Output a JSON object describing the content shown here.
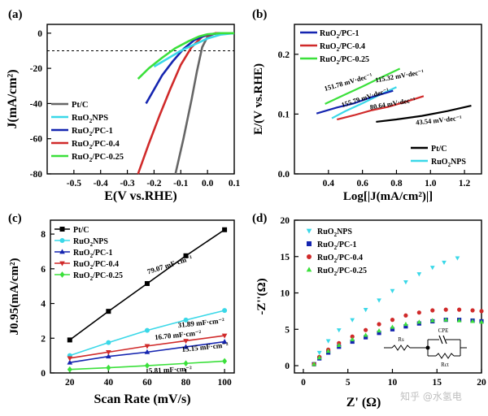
{
  "watermark": "知乎 @水氢电",
  "chart_data": [
    {
      "id": "a",
      "type": "line",
      "panel_label": "(a)",
      "xlabel": "E(V vs.RHE)",
      "ylabel": "J(mA/cm²)",
      "xlim": [
        -0.6,
        0.1
      ],
      "ylim": [
        -80,
        5
      ],
      "xticks": [
        -0.5,
        -0.4,
        -0.3,
        -0.2,
        -0.1,
        0.0,
        0.1
      ],
      "xtick_labels": [
        "-0.5",
        "-0.4",
        "-0.3",
        "-0.2",
        "-0.1",
        "0.0",
        "0.1"
      ],
      "yticks": [
        0,
        -20,
        -40,
        -60,
        -80
      ],
      "ytick_labels": [
        "0",
        "-20",
        "-40",
        "-60",
        "-80"
      ],
      "reference_line": -10,
      "legend": [
        "Pt/C",
        "RuO₂NPS",
        "RuO₂/PC-1",
        "RuO₂/PC-0.4",
        "RuO₂/PC-0.25"
      ],
      "series": [
        {
          "name": "Pt/C",
          "color": "#666666",
          "x": [
            -0.12,
            -0.09,
            -0.06,
            -0.04,
            -0.02,
            0.0,
            0.03,
            0.1
          ],
          "y": [
            -80,
            -60,
            -38,
            -22,
            -8,
            -2,
            0,
            0
          ]
        },
        {
          "name": "RuO₂NPS",
          "color": "#3ad8e8",
          "x": [
            -0.2,
            -0.15,
            -0.1,
            -0.05,
            0.0,
            0.05,
            0.1
          ],
          "y": [
            -19,
            -14.5,
            -10,
            -6.5,
            -3,
            -0.8,
            0
          ]
        },
        {
          "name": "RuO₂/PC-1",
          "color": "#1525b0",
          "x": [
            -0.23,
            -0.2,
            -0.17,
            -0.13,
            -0.09,
            -0.05,
            0.0,
            0.05,
            0.1
          ],
          "y": [
            -40,
            -32,
            -24,
            -16,
            -9,
            -4,
            -0.8,
            0,
            0
          ]
        },
        {
          "name": "RuO₂/PC-0.4",
          "color": "#d02a2a",
          "x": [
            -0.26,
            -0.22,
            -0.18,
            -0.14,
            -0.1,
            -0.06,
            -0.02,
            0.03,
            0.1
          ],
          "y": [
            -80,
            -63,
            -47,
            -32,
            -18,
            -8,
            -2,
            0,
            0
          ]
        },
        {
          "name": "RuO₂/PC-0.25",
          "color": "#3be03b",
          "x": [
            -0.26,
            -0.22,
            -0.17,
            -0.12,
            -0.07,
            -0.03,
            0.0,
            0.05,
            0.1
          ],
          "y": [
            -26,
            -20,
            -14,
            -8.5,
            -4.5,
            -1.8,
            -0.6,
            0,
            0
          ]
        }
      ]
    },
    {
      "id": "b",
      "type": "line",
      "panel_label": "(b)",
      "xlabel": "Log[|J(mA/cm²)|]",
      "ylabel": "E/(V vs.RHE)",
      "xlim": [
        0.2,
        1.3
      ],
      "ylim": [
        0.0,
        0.25
      ],
      "xticks": [
        0.4,
        0.6,
        0.8,
        1.0,
        1.2
      ],
      "xtick_labels": [
        "0.4",
        "0.6",
        "0.8",
        "1.0",
        "1.2"
      ],
      "yticks": [
        0.0,
        0.1,
        0.2
      ],
      "ytick_labels": [
        "0.0",
        "0.1",
        "0.2"
      ],
      "legend_top": [
        "RuO₂/PC-1",
        "RuO₂/PC-0.4",
        "RuO₂/PC-0.25"
      ],
      "legend_bottom": [
        "Pt/C",
        "RuO₂NPS"
      ],
      "series": [
        {
          "name": "Pt/C",
          "color": "#000000",
          "x": [
            0.68,
            0.8,
            0.95,
            1.1,
            1.24
          ],
          "y": [
            0.087,
            0.091,
            0.097,
            0.105,
            0.114
          ],
          "slope_label": "43.54 mV·dec⁻¹"
        },
        {
          "name": "RuO₂NPS",
          "color": "#3ad8e8",
          "x": [
            0.42,
            0.5,
            0.6,
            0.7,
            0.8
          ],
          "y": [
            0.093,
            0.105,
            0.118,
            0.132,
            0.145
          ],
          "slope_label": "155.79 mV·dec⁻¹"
        },
        {
          "name": "RuO₂/PC-1",
          "color": "#1525b0",
          "x": [
            0.33,
            0.45,
            0.55,
            0.65,
            0.78
          ],
          "y": [
            0.101,
            0.111,
            0.118,
            0.128,
            0.139
          ],
          "slope_label": "115.32 mV·dec⁻¹"
        },
        {
          "name": "RuO₂/PC-0.4",
          "color": "#d02a2a",
          "x": [
            0.45,
            0.55,
            0.65,
            0.75,
            0.86,
            0.96
          ],
          "y": [
            0.091,
            0.098,
            0.106,
            0.112,
            0.121,
            0.13
          ],
          "slope_label": "80.64 mV·dec⁻¹"
        },
        {
          "name": "RuO₂/PC-0.25",
          "color": "#3be03b",
          "x": [
            0.38,
            0.5,
            0.6,
            0.7,
            0.82
          ],
          "y": [
            0.117,
            0.133,
            0.146,
            0.16,
            0.176
          ],
          "slope_label": "151.78 mV·dec⁻¹"
        }
      ]
    },
    {
      "id": "c",
      "type": "scatter",
      "panel_label": "(c)",
      "xlabel": "Scan Rate (mV/s)",
      "ylabel": "J0.95(mA/cm²)",
      "xlim": [
        10,
        105
      ],
      "ylim": [
        0,
        8.8
      ],
      "xticks": [
        20,
        40,
        60,
        80,
        100
      ],
      "xtick_labels": [
        "20",
        "40",
        "60",
        "80",
        "100"
      ],
      "yticks": [
        0,
        2,
        4,
        6,
        8
      ],
      "ytick_labels": [
        "0",
        "2",
        "4",
        "6",
        "8"
      ],
      "legend": [
        "Pt/C",
        "RuO₂NPS",
        "RuO₂/PC-1",
        "RuO₂/PC-0.4",
        "RuO₂/PC-0.25"
      ],
      "series": [
        {
          "name": "Pt/C",
          "color": "#000000",
          "marker": "square",
          "x": [
            20,
            40,
            60,
            80,
            100
          ],
          "y": [
            1.9,
            3.55,
            5.15,
            6.75,
            8.25
          ],
          "slope_label": "79.07 mF·cm⁻²"
        },
        {
          "name": "RuO₂NPS",
          "color": "#3ad8e8",
          "marker": "circle",
          "x": [
            20,
            40,
            60,
            80,
            100
          ],
          "y": [
            1.0,
            1.75,
            2.45,
            3.05,
            3.6
          ],
          "slope_label": "31.89 mF·cm⁻²"
        },
        {
          "name": "RuO₂/PC-1",
          "color": "#1525b0",
          "marker": "triangle-up",
          "x": [
            20,
            40,
            60,
            80,
            100
          ],
          "y": [
            0.6,
            0.95,
            1.2,
            1.5,
            1.8
          ],
          "slope_label": "15.15 mF·cm⁻²"
        },
        {
          "name": "RuO₂/PC-0.4",
          "color": "#d02a2a",
          "marker": "triangle-down",
          "x": [
            20,
            40,
            60,
            80,
            100
          ],
          "y": [
            0.85,
            1.2,
            1.55,
            1.85,
            2.15
          ],
          "slope_label": "16.70 mF·cm⁻²"
        },
        {
          "name": "RuO₂/PC-0.25",
          "color": "#3be03b",
          "marker": "diamond",
          "x": [
            20,
            40,
            60,
            80,
            100
          ],
          "y": [
            0.2,
            0.3,
            0.42,
            0.55,
            0.68
          ],
          "slope_label": "5.81 mF·cm⁻²"
        }
      ]
    },
    {
      "id": "d",
      "type": "scatter",
      "panel_label": "(d)",
      "xlabel": "Z' (Ω)",
      "ylabel": "-Z''(Ω)",
      "xlim": [
        -1,
        20
      ],
      "ylim": [
        -1,
        20
      ],
      "xticks": [
        0,
        5,
        10,
        15,
        20
      ],
      "xtick_labels": [
        "0",
        "5",
        "10",
        "15",
        "20"
      ],
      "yticks": [
        0,
        5,
        10,
        15,
        20
      ],
      "ytick_labels": [
        "0",
        "5",
        "10",
        "15",
        "20"
      ],
      "legend": [
        "RuO₂NPS",
        "RuO₂/PC-1",
        "RuO₂/PC-0.4",
        "RuO₂/PC-0.25"
      ],
      "circuit_labels": [
        "Rs",
        "CPE",
        "Rct"
      ],
      "series": [
        {
          "name": "RuO₂NPS",
          "color": "#3ad8e8",
          "marker": "triangle-down",
          "x": [
            1.2,
            1.8,
            2.8,
            4.0,
            5.5,
            7.0,
            8.5,
            10.0,
            11.5,
            13.0,
            14.5,
            15.8,
            17.3
          ],
          "y": [
            0.2,
            1.8,
            3.4,
            4.9,
            6.3,
            7.7,
            9.0,
            10.3,
            11.5,
            12.6,
            13.5,
            14.2,
            14.8
          ]
        },
        {
          "name": "RuO₂/PC-1",
          "color": "#1525b0",
          "marker": "square",
          "x": [
            1.2,
            1.8,
            2.8,
            4.0,
            5.5,
            7.0,
            8.5,
            10.0,
            11.5,
            13.0,
            14.5,
            16.0,
            17.5,
            19.0,
            20.0
          ],
          "y": [
            0.2,
            1.0,
            1.8,
            2.6,
            3.3,
            3.9,
            4.5,
            5.0,
            5.4,
            5.8,
            6.1,
            6.3,
            6.3,
            6.2,
            6.1
          ]
        },
        {
          "name": "RuO₂/PC-0.4",
          "color": "#d02a2a",
          "marker": "circle",
          "x": [
            1.2,
            1.8,
            2.8,
            4.0,
            5.5,
            7.0,
            8.5,
            10.0,
            11.5,
            13.0,
            14.5,
            16.0,
            17.5,
            19.0,
            20.0
          ],
          "y": [
            0.2,
            1.2,
            2.2,
            3.1,
            4.0,
            4.9,
            5.7,
            6.3,
            6.9,
            7.3,
            7.6,
            7.7,
            7.7,
            7.6,
            7.5
          ]
        },
        {
          "name": "RuO₂/PC-0.25",
          "color": "#3be03b",
          "marker": "triangle-up",
          "x": [
            1.2,
            1.8,
            2.8,
            4.0,
            5.5,
            7.0,
            8.5,
            10.0,
            11.5,
            13.0,
            14.5,
            16.0,
            17.5,
            19.0,
            20.0
          ],
          "y": [
            0.2,
            1.1,
            2.0,
            2.8,
            3.6,
            4.2,
            4.8,
            5.3,
            5.7,
            6.0,
            6.2,
            6.3,
            6.2,
            6.1,
            6.0
          ]
        }
      ]
    }
  ]
}
